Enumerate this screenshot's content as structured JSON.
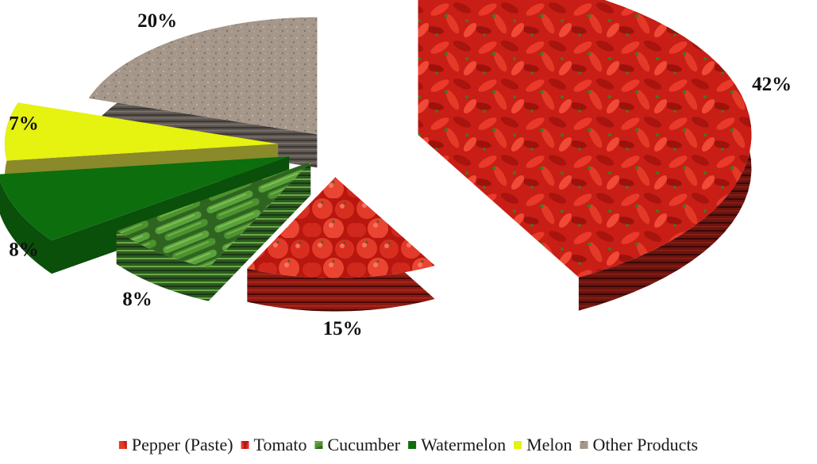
{
  "chart_data": {
    "type": "pie",
    "style": "3d-exploded",
    "title": "",
    "legend_position": "bottom",
    "slices": [
      {
        "label": "Pepper (Paste)",
        "value": 42,
        "display": "42%",
        "color": "#c0201a",
        "side_color": "#5a1010",
        "texture": "red peppers"
      },
      {
        "label": "Tomato",
        "value": 15,
        "display": "15%",
        "color": "#d42a22",
        "side_color": "#7a1612",
        "texture": "tomatoes"
      },
      {
        "label": "Cucumber",
        "value": 8,
        "display": "8%",
        "color": "#3f7d2e",
        "side_color": "#2c5a20",
        "texture": "cucumbers"
      },
      {
        "label": "Watermelon",
        "value": 8,
        "display": "8%",
        "color": "#0d6e0d",
        "side_color": "#0a4f0a",
        "texture": "solid"
      },
      {
        "label": "Melon",
        "value": 7,
        "display": "7%",
        "color": "#e6f20f",
        "side_color": "#8a8a2a",
        "texture": "solid"
      },
      {
        "label": "Other Products",
        "value": 20,
        "display": "20%",
        "color": "#a3958a",
        "side_color": "#5c5550",
        "texture": "stone"
      }
    ]
  }
}
